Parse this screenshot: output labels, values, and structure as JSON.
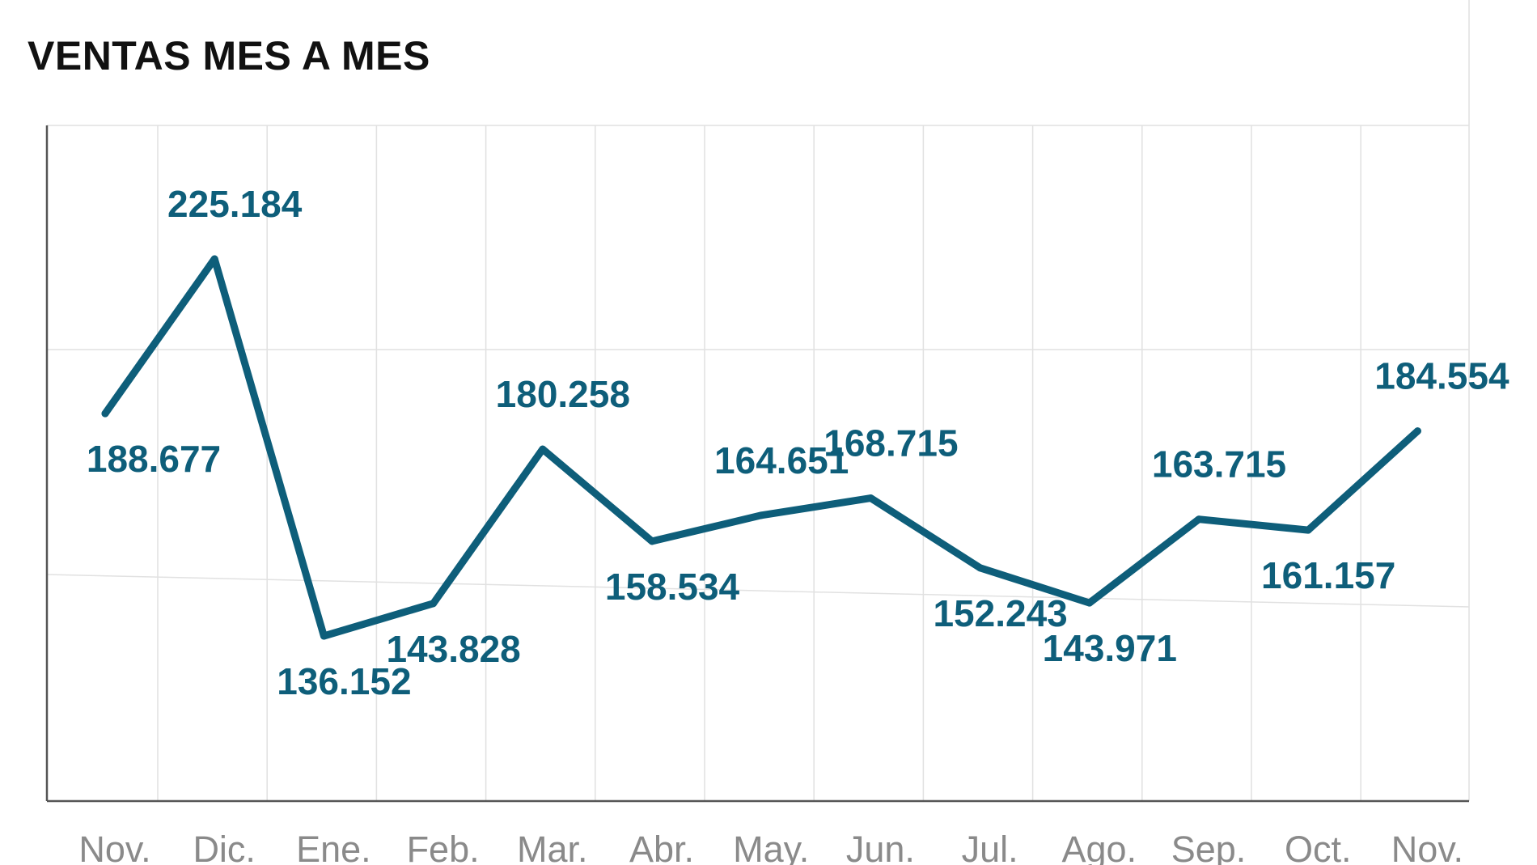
{
  "chart_data": {
    "type": "line",
    "title": "VENTAS MES A MES",
    "xlabel": "",
    "ylabel": "",
    "categories": [
      "Nov.",
      "Dic.",
      "Ene.",
      "Feb.",
      "Mar.",
      "Abr.",
      "May.",
      "Jun.",
      "Jul.",
      "Ago.",
      "Sep.",
      "Oct.",
      "Nov."
    ],
    "series": [
      {
        "values": [
          188677,
          225184,
          136152,
          143828,
          180258,
          158534,
          164651,
          168715,
          152243,
          143971,
          163715,
          161157,
          184554
        ],
        "labels": [
          "188.677",
          "225.184",
          "136.152",
          "143.828",
          "180.258",
          "158.534",
          "164.651",
          "168.715",
          "152.243",
          "143.971",
          "163.715",
          "161.157",
          "184.554"
        ]
      }
    ],
    "grid": true,
    "legend": "none",
    "colors": {
      "line": "#0e5e7a",
      "label": "#0e5e7a",
      "grid": "#e1e1e1",
      "axis": "#555555",
      "tick": "#8a8a8a",
      "title": "#111111"
    }
  }
}
